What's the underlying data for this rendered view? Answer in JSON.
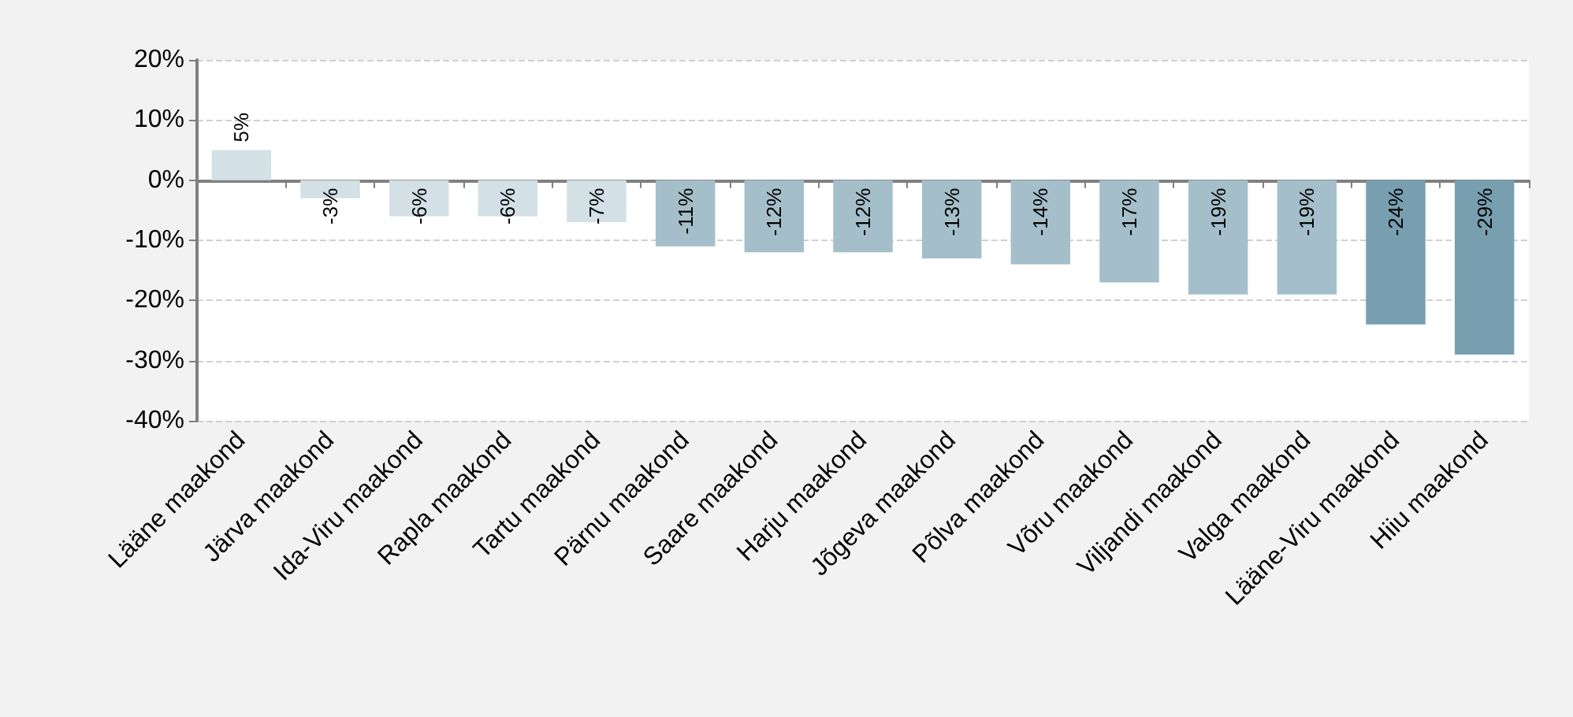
{
  "chart_data": {
    "type": "bar",
    "categories": [
      "Lääne maakond",
      "Järva maakond",
      "Ida-Viru maakond",
      "Rapla maakond",
      "Tartu maakond",
      "Pärnu maakond",
      "Saare maakond",
      "Harju maakond",
      "Jõgeva maakond",
      "Põlva maakond",
      "Võru maakond",
      "Viljandi maakond",
      "Valga maakond",
      "Lääne-Viru maakond",
      "Hiiu maakond"
    ],
    "values": [
      5,
      -3,
      -6,
      -6,
      -7,
      -11,
      -12,
      -12,
      -13,
      -14,
      -17,
      -19,
      -19,
      -24,
      -29
    ],
    "value_labels": [
      "5%",
      "-3%",
      "-6%",
      "-6%",
      "-7%",
      "-11%",
      "-12%",
      "-12%",
      "-13%",
      "-14%",
      "-17%",
      "-19%",
      "-19%",
      "-24%",
      "-29%"
    ],
    "colors": [
      "#d3e0e6",
      "#d3e0e6",
      "#d3e0e6",
      "#d3e0e6",
      "#d3e0e6",
      "#a5bfca",
      "#a5bfca",
      "#a5bfca",
      "#a5bfca",
      "#a5bfca",
      "#a5bfca",
      "#a5bfca",
      "#a5bfca",
      "#779fb0",
      "#779fb0"
    ],
    "ylim": [
      -40,
      20
    ],
    "yticks": [
      {
        "value": -40,
        "label": "-40%"
      },
      {
        "value": -30,
        "label": "-30%"
      },
      {
        "value": -20,
        "label": "-20%"
      },
      {
        "value": -10,
        "label": "-10%"
      },
      {
        "value": 0,
        "label": "0%"
      },
      {
        "value": 10,
        "label": "10%"
      },
      {
        "value": 20,
        "label": "20%"
      }
    ],
    "grid": "y"
  }
}
